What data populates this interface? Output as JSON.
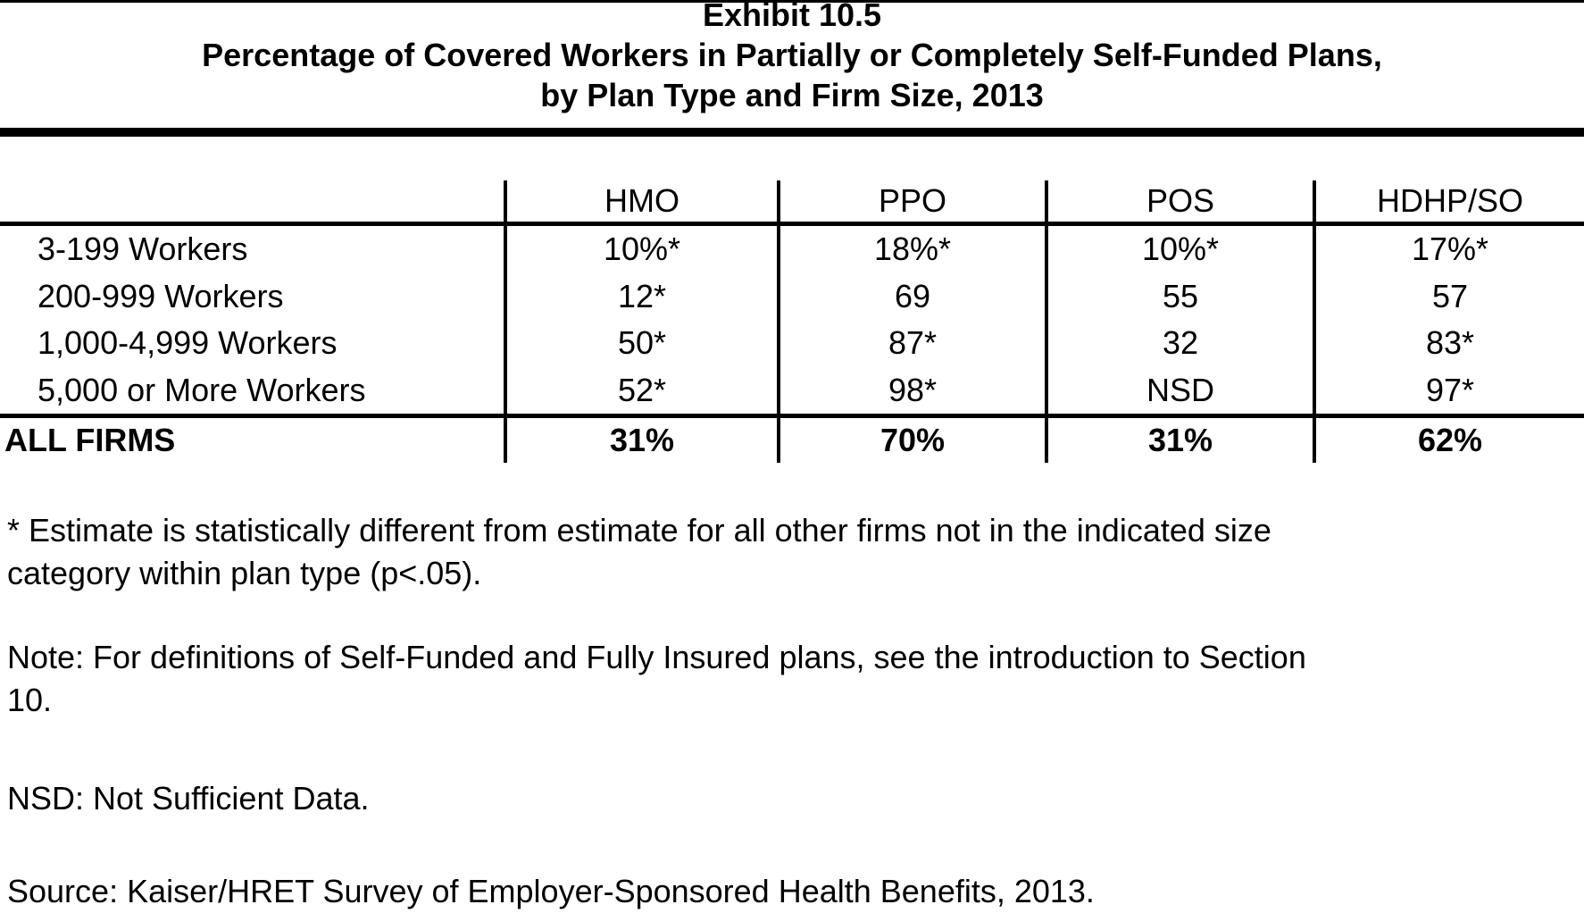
{
  "title": {
    "line1": "Exhibit 10.5",
    "line2": "Percentage of Covered Workers in Partially or Completely Self-Funded Plans,",
    "line3": "by Plan Type and Firm Size, 2013"
  },
  "table": {
    "columns": [
      "HMO",
      "PPO",
      "POS",
      "HDHP/SO"
    ],
    "rows": [
      {
        "label": "3-199 Workers",
        "values": [
          "10%*",
          "18%*",
          "10%*",
          "17%*"
        ]
      },
      {
        "label": "200-999 Workers",
        "values": [
          "12*",
          "69",
          "55",
          "57"
        ]
      },
      {
        "label": "1,000-4,999 Workers",
        "values": [
          "50*",
          "87*",
          "32",
          "83*"
        ]
      },
      {
        "label": "5,000 or More Workers",
        "values": [
          "52*",
          "98*",
          "NSD",
          "97*"
        ]
      }
    ],
    "total_row": {
      "label": "ALL FIRMS",
      "values": [
        "31%",
        "70%",
        "31%",
        "62%"
      ]
    }
  },
  "footnotes": {
    "significance_line1": "* Estimate is statistically different from estimate for all other firms not in the indicated size",
    "significance_line2": "category within plan type (p<.05).",
    "note_line1": "Note: For definitions of Self-Funded and Fully Insured plans, see the introduction to Section",
    "note_line2": "10.",
    "nsd": "NSD: Not Sufficient Data.",
    "source": "Source: Kaiser/HRET Survey of Employer-Sponsored Health Benefits, 2013."
  },
  "colors": {
    "text": "#000000",
    "background": "#ffffff",
    "rule": "#000000"
  }
}
